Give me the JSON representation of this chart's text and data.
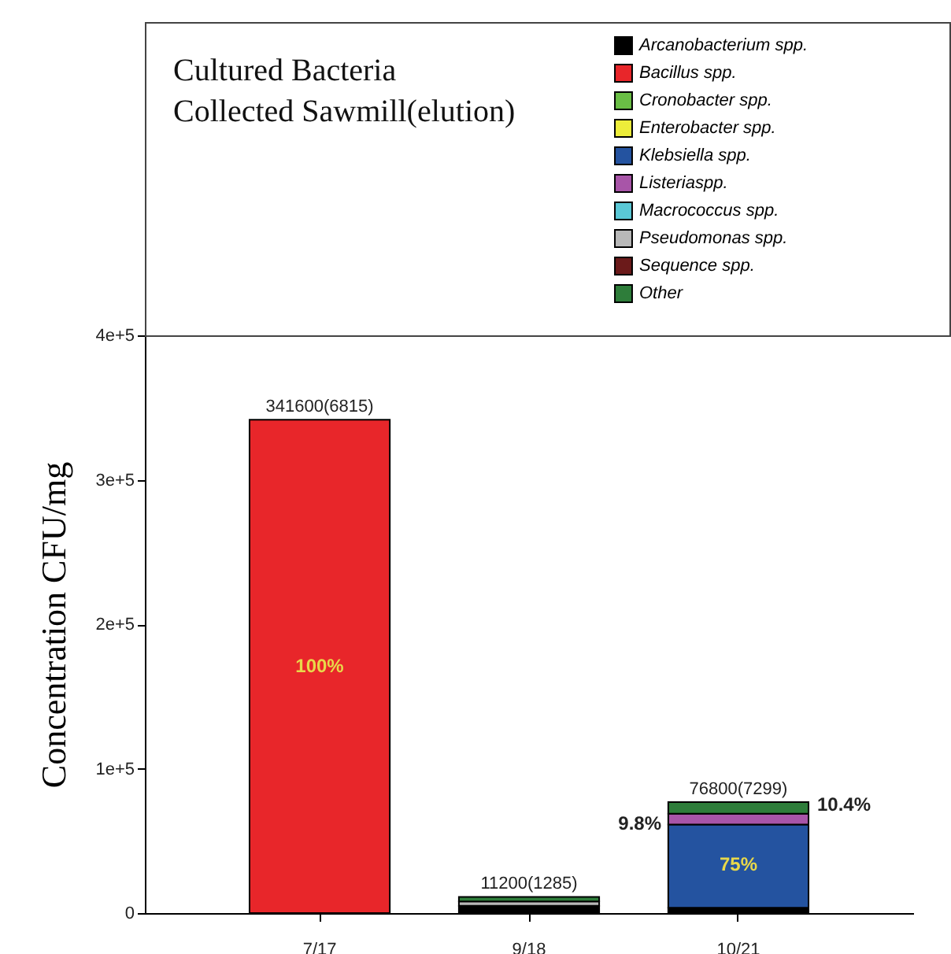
{
  "chart_data": {
    "type": "bar",
    "title": [
      "Cultured Bacteria",
      "Collected Sawmill(elution)"
    ],
    "ylabel": "Concentration CFU/mg",
    "categories": [
      "7/17",
      "9/18",
      "10/21"
    ],
    "stacked": true,
    "series": [
      {
        "name": "Arcanobacterium spp.",
        "color": "#000000",
        "values": [
          null,
          5000,
          3700
        ]
      },
      {
        "name": "Bacillus spp.",
        "color": "#e8262a",
        "values": [
          341600,
          null,
          null
        ]
      },
      {
        "name": "Cronobacter spp.",
        "color": "#6abf45",
        "values": [
          null,
          null,
          null
        ]
      },
      {
        "name": "Enterobacter spp.",
        "color": "#eded3a",
        "values": [
          null,
          null,
          null
        ]
      },
      {
        "name": "Klebsiella spp.",
        "color": "#2453a0",
        "values": [
          null,
          null,
          57600
        ]
      },
      {
        "name": "Listeriaspp.",
        "color": "#a855a8",
        "values": [
          null,
          null,
          7500
        ]
      },
      {
        "name": "Macrococcus spp.",
        "color": "#5ac8d6",
        "values": [
          null,
          null,
          null
        ]
      },
      {
        "name": "Pseudomonas spp.",
        "color": "#b8b8b8",
        "values": [
          null,
          3000,
          null
        ]
      },
      {
        "name": "Sequence spp.",
        "color": "#6b1a1a",
        "values": [
          null,
          null,
          null
        ]
      },
      {
        "name": "Other",
        "color": "#2e7d3a",
        "values": [
          null,
          3200,
          8000
        ]
      }
    ],
    "totals": [
      "341600(6815)",
      "11200(1285)",
      "76800(7299)"
    ],
    "annotations": [
      "100%",
      "75%",
      "9.8%",
      "10.4%"
    ],
    "ylim": [
      0,
      400000
    ],
    "yticks": [
      0,
      {
        "value": 100000,
        "label": "1e+5"
      },
      {
        "value": 200000,
        "label": "2e+5"
      },
      {
        "value": 300000,
        "label": "3e+5"
      },
      {
        "value": 400000,
        "label": "4e+5"
      }
    ],
    "grid": false,
    "legend": "top right"
  }
}
